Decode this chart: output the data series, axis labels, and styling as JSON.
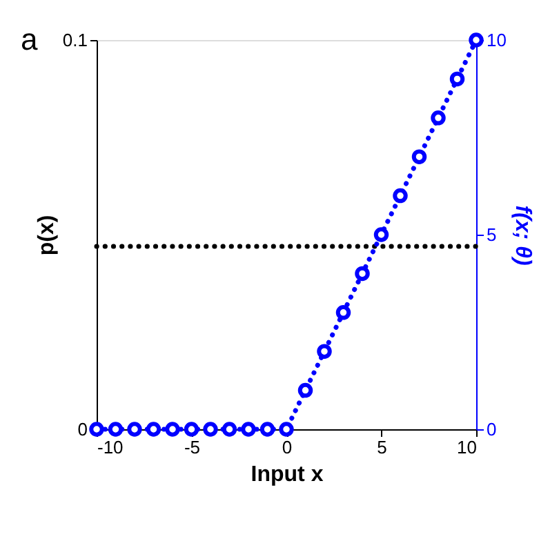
{
  "chart_data": {
    "type": "line",
    "xlabel": "Input x",
    "ylabel": "p(x)",
    "y2label": "f(x; θ)",
    "annotations": [
      "a"
    ],
    "xlim": [
      -10,
      10
    ],
    "xticks": [
      -10,
      -5,
      0,
      5,
      10
    ],
    "ylim": [
      0,
      0.1
    ],
    "yticks": [
      0,
      0.1
    ],
    "y2lim": [
      0,
      10
    ],
    "y2ticks": [
      0,
      5,
      10
    ],
    "grid": false,
    "series": [
      {
        "color": "#000000",
        "x": [
          -10,
          10
        ],
        "values": [
          0.047,
          0.047
        ],
        "line_style": "dotted",
        "marker": "none"
      },
      {
        "color": "#0000ff",
        "axis": "y2",
        "line_style": "dotted",
        "marker": "circle",
        "x": [
          -10,
          -9,
          -8,
          -7,
          -6,
          -5,
          -4,
          -3,
          -2,
          -1,
          0,
          1,
          2,
          3,
          4,
          5,
          6,
          7,
          8,
          9,
          10
        ],
        "values": [
          0,
          0,
          0,
          0,
          0,
          0,
          0,
          0,
          0,
          0,
          0,
          1,
          2,
          3,
          4,
          5,
          6,
          7,
          8,
          9,
          10
        ]
      }
    ]
  }
}
